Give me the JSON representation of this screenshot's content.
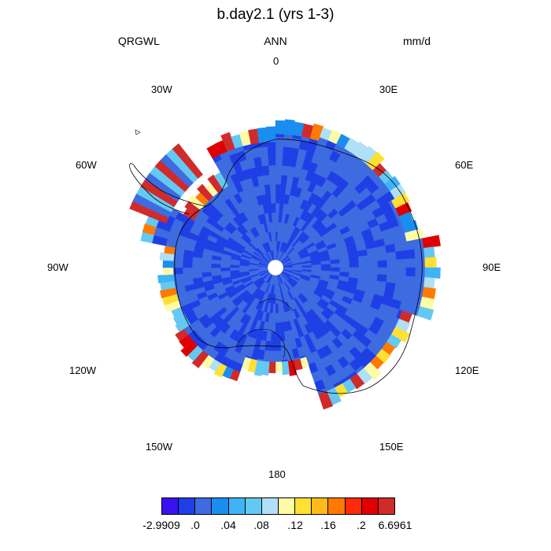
{
  "title": "b.day2.1 (yrs 1-3)",
  "subtitles": {
    "left": "QRGWL",
    "center": "ANN",
    "right": "mm/d"
  },
  "longitude_labels": [
    "0",
    "30E",
    "60E",
    "90E",
    "120E",
    "150E",
    "180",
    "150W",
    "120W",
    "90W",
    "60W",
    "30W"
  ],
  "colorbar": {
    "colors": [
      "#3a12f0",
      "#1f3fe6",
      "#3d6be0",
      "#1a8df0",
      "#3fb3f5",
      "#63c9f2",
      "#b0e0f5",
      "#fffaa6",
      "#ffe033",
      "#ffbb1a",
      "#ff7a00",
      "#ff2a0a",
      "#e00000",
      "#d12a2a"
    ],
    "labels": [
      "-2.9909",
      ".0",
      ".04",
      ".08",
      ".12",
      ".16",
      ".2",
      "6.6961"
    ]
  },
  "map": {
    "projection": "south-polar stereographic",
    "region": "Antarctica",
    "variable": "QRGWL",
    "units": "mm/d"
  }
}
